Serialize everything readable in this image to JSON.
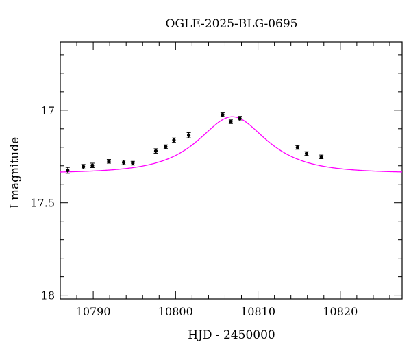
{
  "chart_data": {
    "type": "scatter",
    "title": "OGLE-2025-BLG-0695",
    "xlabel": "HJD - 2450000",
    "ylabel": "I magnitude",
    "xlim": [
      10786,
      10827.5
    ],
    "ylim": [
      18.02,
      16.63
    ],
    "y_inverted": true,
    "x_ticks": [
      10790,
      10800,
      10810,
      10820
    ],
    "x_tick_labels": [
      "10790",
      "10800",
      "10810",
      "10820"
    ],
    "y_ticks": [
      17,
      17.5,
      18
    ],
    "y_tick_labels": [
      "17",
      "17.5",
      "18"
    ],
    "x_minor_step": 2,
    "y_minor_step": 0.1,
    "grid": false,
    "colors": {
      "data": "#000000",
      "model": "#ff00ff",
      "frame": "#000000"
    },
    "series": [
      {
        "type": "errorbar-points",
        "points": [
          {
            "x": 10786.9,
            "y": 17.325,
            "err": 0.016
          },
          {
            "x": 10788.8,
            "y": 17.305,
            "err": 0.012
          },
          {
            "x": 10789.9,
            "y": 17.298,
            "err": 0.012
          },
          {
            "x": 10791.9,
            "y": 17.276,
            "err": 0.01
          },
          {
            "x": 10793.7,
            "y": 17.282,
            "err": 0.012
          },
          {
            "x": 10794.8,
            "y": 17.286,
            "err": 0.01
          },
          {
            "x": 10797.6,
            "y": 17.22,
            "err": 0.012
          },
          {
            "x": 10798.8,
            "y": 17.197,
            "err": 0.01
          },
          {
            "x": 10799.8,
            "y": 17.162,
            "err": 0.012
          },
          {
            "x": 10801.6,
            "y": 17.135,
            "err": 0.014
          },
          {
            "x": 10805.7,
            "y": 17.024,
            "err": 0.01
          },
          {
            "x": 10806.7,
            "y": 17.062,
            "err": 0.01
          },
          {
            "x": 10807.8,
            "y": 17.045,
            "err": 0.012
          },
          {
            "x": 10814.8,
            "y": 17.201,
            "err": 0.01
          },
          {
            "x": 10815.9,
            "y": 17.234,
            "err": 0.01
          },
          {
            "x": 10817.7,
            "y": 17.252,
            "err": 0.01
          }
        ]
      },
      {
        "type": "line",
        "model": "microlensing-fit",
        "t0": 10806.9,
        "tE": 6.2,
        "u0": 0.8,
        "base_mag": 17.34,
        "peak_mag": 17.035
      }
    ]
  }
}
